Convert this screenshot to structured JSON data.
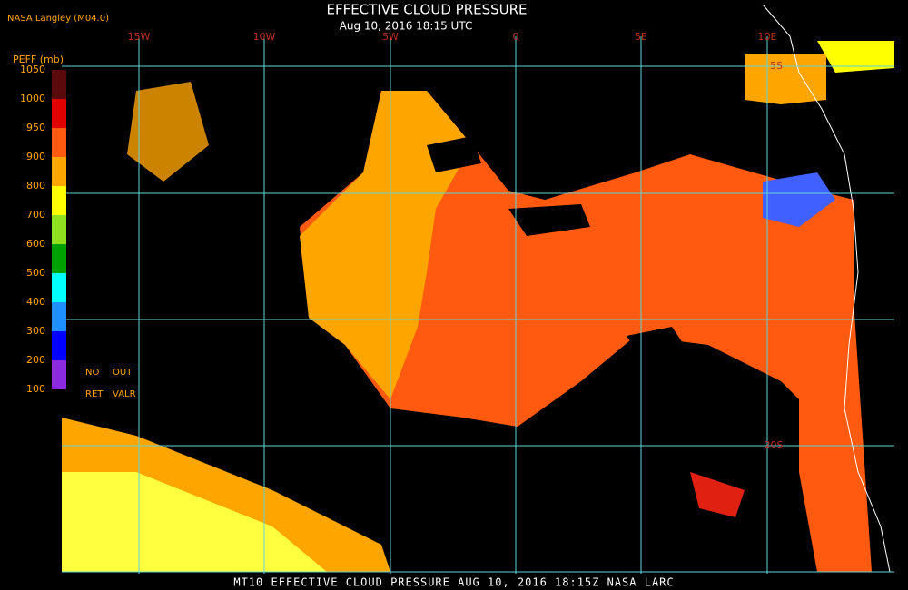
{
  "header": {
    "title": "EFFECTIVE CLOUD PRESSURE",
    "subtitle": "Aug 10, 2016 18:15 UTC",
    "credit": "NASA Langley (M04.0)"
  },
  "map": {
    "lon_labels": [
      "15W",
      "10W",
      "5W",
      "0",
      "5E",
      "10E"
    ],
    "lat_labels": [
      "5S",
      "20S"
    ]
  },
  "legend": {
    "label": "PEFF (mb)",
    "ticks": [
      "1050",
      "1000",
      "950",
      "900",
      "800",
      "700",
      "600",
      "500",
      "400",
      "300",
      "200",
      "100"
    ],
    "colors": [
      "#5a0a0a",
      "#e00000",
      "#ff5a10",
      "#ffa500",
      "#ffff00",
      "#90e020",
      "#00a000",
      "#00ffff",
      "#1e90ff",
      "#0000ff",
      "#8a2be2"
    ],
    "notes": [
      "NO",
      "OUT",
      "RET",
      "VALR"
    ]
  },
  "footer": "MT10  EFFECTIVE CLOUD PRESSURE  AUG 10, 2016 18:15Z  NASA LARC"
}
